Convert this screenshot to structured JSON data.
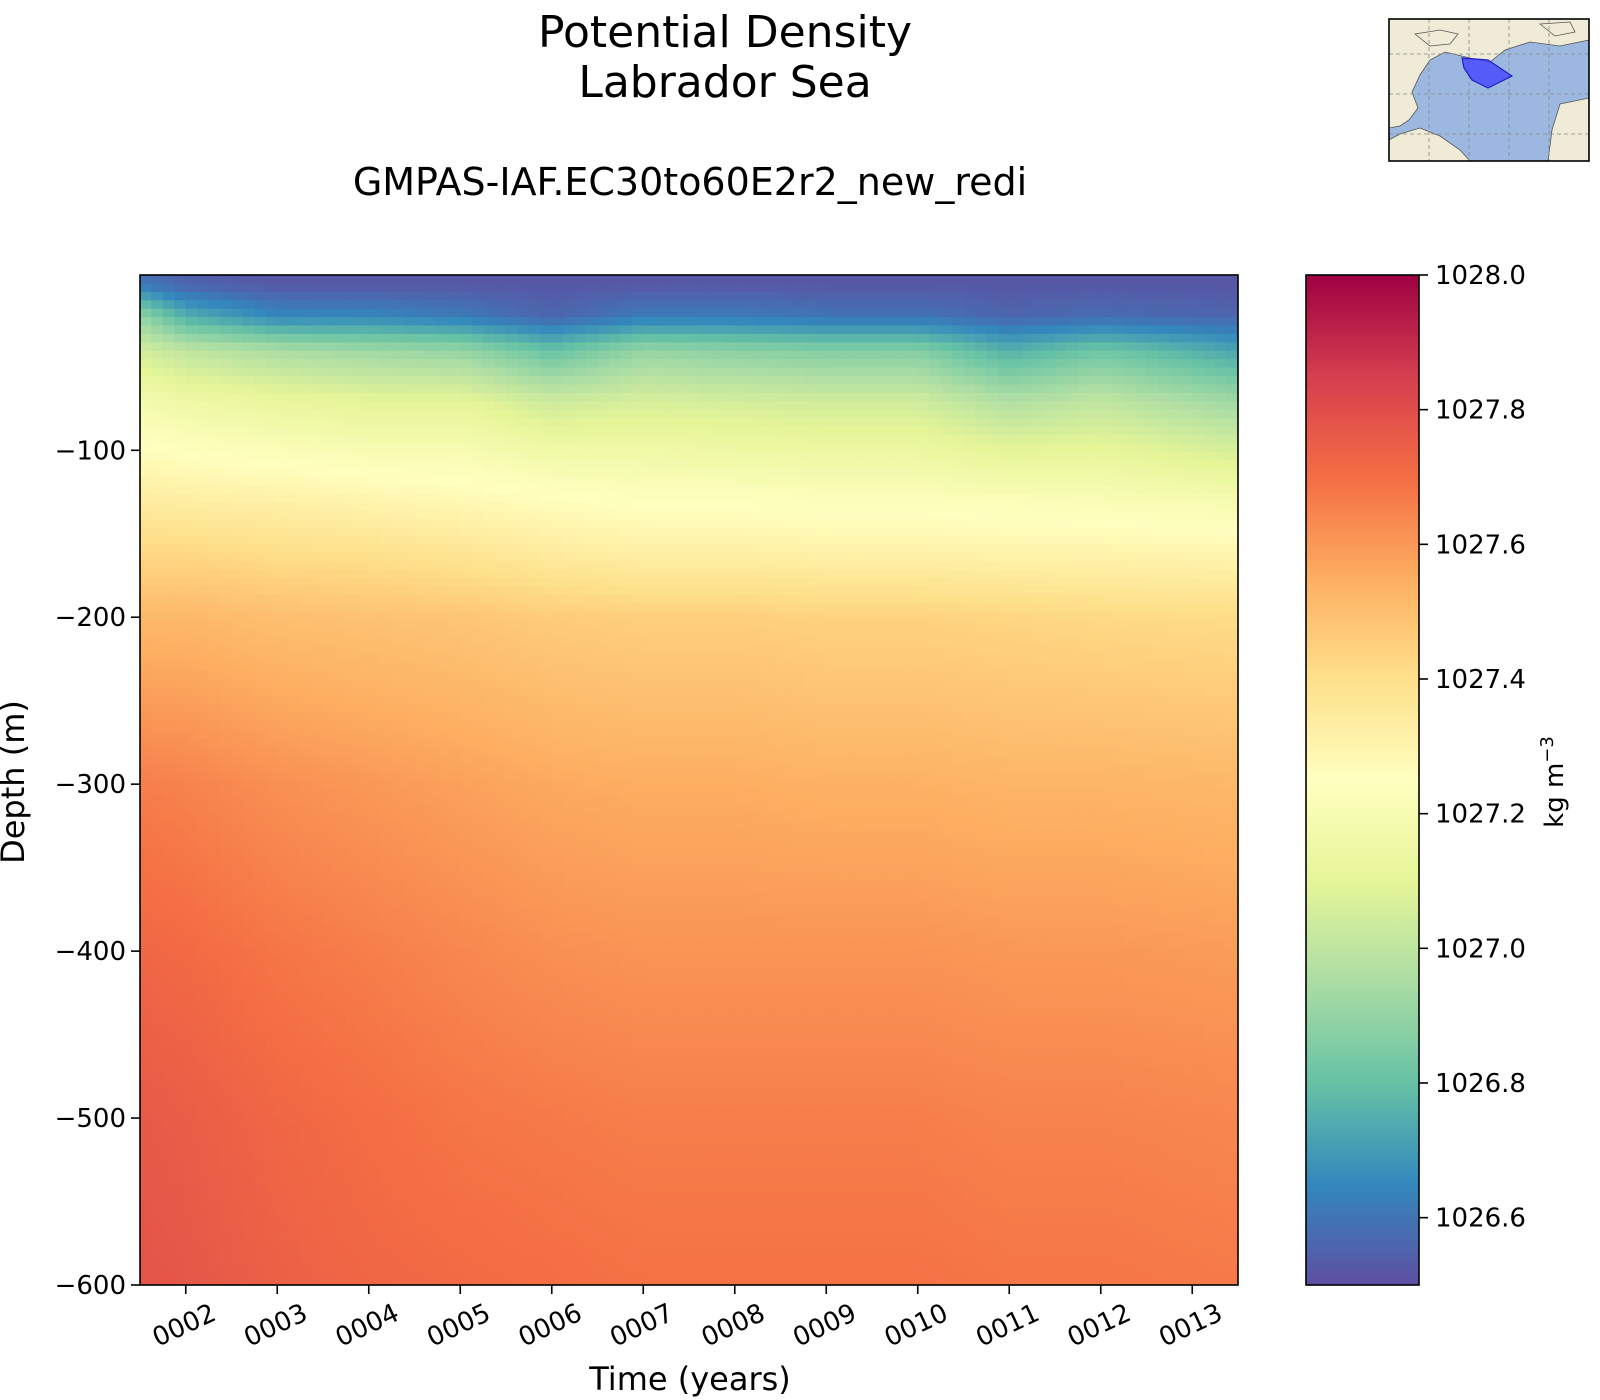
{
  "chart_data": {
    "type": "heatmap",
    "title": "Potential Density",
    "subtitle": "Labrador Sea",
    "run_name": "GMPAS-IAF.EC30to60E2r2_new_redi",
    "xlabel": "Time (years)",
    "ylabel": "Depth (m)",
    "x_ticks": [
      "0002",
      "0003",
      "0004",
      "0005",
      "0006",
      "0007",
      "0008",
      "0009",
      "0010",
      "0011",
      "0012",
      "0013"
    ],
    "x_tick_values": [
      2,
      3,
      4,
      5,
      6,
      7,
      8,
      9,
      10,
      11,
      12,
      13
    ],
    "xlim": [
      1.5,
      13.5
    ],
    "y_ticks": [
      "−100",
      "−200",
      "−300",
      "−400",
      "−500",
      "−600"
    ],
    "y_tick_values": [
      -100,
      -200,
      -300,
      -400,
      -500,
      -600
    ],
    "ylim": [
      -600,
      5
    ],
    "colorbar": {
      "label": "kg m",
      "label_exponent": "−3",
      "ticks": [
        "1028.0",
        "1027.8",
        "1027.6",
        "1027.4",
        "1027.2",
        "1027.0",
        "1026.8",
        "1026.6"
      ],
      "tick_values": [
        1028.0,
        1027.8,
        1027.6,
        1027.4,
        1027.2,
        1027.0,
        1026.8,
        1026.6
      ],
      "range": [
        1026.5,
        1028.0
      ],
      "colormap": "Spectral_r"
    },
    "depths": [
      0,
      -20,
      -40,
      -70,
      -100,
      -130,
      -160,
      -200,
      -300,
      -400,
      -500,
      -600
    ],
    "series": [
      {
        "year": 1.5,
        "values": [
          1026.6,
          1026.9,
          1027.05,
          1027.18,
          1027.26,
          1027.34,
          1027.42,
          1027.52,
          1027.66,
          1027.72,
          1027.76,
          1027.78
        ]
      },
      {
        "year": 2.0,
        "values": [
          1026.55,
          1026.75,
          1027.0,
          1027.15,
          1027.24,
          1027.33,
          1027.42,
          1027.52,
          1027.65,
          1027.71,
          1027.75,
          1027.77
        ]
      },
      {
        "year": 3.0,
        "values": [
          1026.52,
          1026.65,
          1026.95,
          1027.12,
          1027.22,
          1027.32,
          1027.4,
          1027.5,
          1027.62,
          1027.68,
          1027.72,
          1027.74
        ]
      },
      {
        "year": 4.0,
        "values": [
          1026.52,
          1026.65,
          1026.92,
          1027.1,
          1027.2,
          1027.3,
          1027.39,
          1027.49,
          1027.6,
          1027.66,
          1027.7,
          1027.72
        ]
      },
      {
        "year": 5.0,
        "values": [
          1026.52,
          1026.62,
          1026.9,
          1027.1,
          1027.2,
          1027.28,
          1027.37,
          1027.48,
          1027.58,
          1027.64,
          1027.68,
          1027.71
        ]
      },
      {
        "year": 6.0,
        "values": [
          1026.52,
          1026.56,
          1026.8,
          1027.03,
          1027.16,
          1027.26,
          1027.34,
          1027.46,
          1027.56,
          1027.62,
          1027.67,
          1027.7
        ]
      },
      {
        "year": 7.0,
        "values": [
          1026.52,
          1026.62,
          1026.9,
          1027.06,
          1027.16,
          1027.24,
          1027.32,
          1027.45,
          1027.55,
          1027.61,
          1027.66,
          1027.69
        ]
      },
      {
        "year": 8.0,
        "values": [
          1026.52,
          1026.62,
          1026.88,
          1027.05,
          1027.15,
          1027.24,
          1027.32,
          1027.45,
          1027.55,
          1027.61,
          1027.66,
          1027.69
        ]
      },
      {
        "year": 9.0,
        "values": [
          1026.52,
          1026.6,
          1026.86,
          1027.04,
          1027.14,
          1027.23,
          1027.31,
          1027.44,
          1027.54,
          1027.61,
          1027.66,
          1027.69
        ]
      },
      {
        "year": 10.0,
        "values": [
          1026.52,
          1026.6,
          1026.86,
          1027.04,
          1027.14,
          1027.23,
          1027.31,
          1027.44,
          1027.54,
          1027.61,
          1027.66,
          1027.69
        ]
      },
      {
        "year": 11.0,
        "values": [
          1026.52,
          1026.56,
          1026.75,
          1026.96,
          1027.1,
          1027.22,
          1027.3,
          1027.43,
          1027.53,
          1027.6,
          1027.65,
          1027.68
        ]
      },
      {
        "year": 12.0,
        "values": [
          1026.52,
          1026.58,
          1026.82,
          1027.0,
          1027.11,
          1027.21,
          1027.3,
          1027.42,
          1027.53,
          1027.6,
          1027.65,
          1027.68
        ]
      },
      {
        "year": 13.5,
        "values": [
          1026.52,
          1026.56,
          1026.72,
          1026.92,
          1027.06,
          1027.19,
          1027.29,
          1027.41,
          1027.52,
          1027.59,
          1027.64,
          1027.67
        ]
      }
    ],
    "colors": {
      "colorbar_stops": [
        "#5e4fa2",
        "#3288bd",
        "#66c2a5",
        "#abdda4",
        "#e6f598",
        "#ffffbf",
        "#fee08b",
        "#fdae61",
        "#f46d43",
        "#d53e4f",
        "#9e0142"
      ],
      "map_ocean": "#9db8e0",
      "map_land": "#efebd6",
      "map_region": "#3d3dff"
    }
  }
}
